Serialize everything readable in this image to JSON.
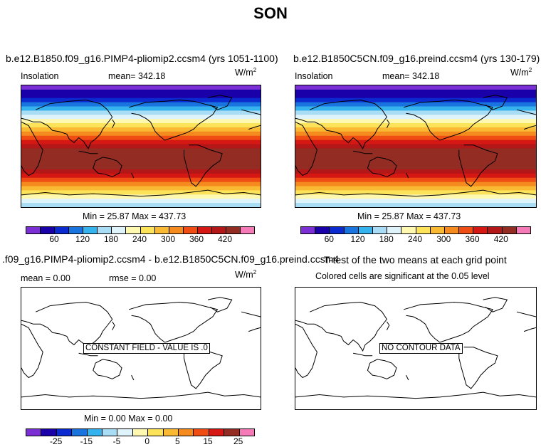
{
  "figure_title": "SON",
  "colors": {
    "insolation_palette": [
      "#7b2fd4",
      "#1a00a8",
      "#0b2ad0",
      "#1a74e0",
      "#35b3ee",
      "#a9dcf5",
      "#dff3fb",
      "#fff8b0",
      "#fde35a",
      "#f9b933",
      "#f58a1f",
      "#ef4d14",
      "#d51814",
      "#b31717",
      "#932c23",
      "#f57ab8"
    ],
    "diff_palette": [
      "#7b2fd4",
      "#1a00a8",
      "#0b2ad0",
      "#1a74e0",
      "#35b3ee",
      "#a9dcf5",
      "#dff3fb",
      "#fff8b0",
      "#fde35a",
      "#f9b933",
      "#f58a1f",
      "#ef4d14",
      "#d51814",
      "#932c23",
      "#f57ab8"
    ]
  },
  "panels": {
    "top_left": {
      "title": "b.e12.B1850.f09_g16.PIMP4-pliomip2.ccsm4 (yrs 1051-1100)",
      "variable": "Insolation",
      "mean": "mean= 342.18",
      "units_base": "W/m",
      "units_exp": "2",
      "minmax": "Min =  25.87 Max = 437.73",
      "ticks": [
        "60",
        "120",
        "180",
        "240",
        "300",
        "360",
        "420"
      ]
    },
    "top_right": {
      "title": "b.e12.B1850C5CN.f09_g16.preind.ccsm4 (yrs 130-179)",
      "variable": "Insolation",
      "mean": "mean= 342.18",
      "units_base": "W/m",
      "units_exp": "2",
      "minmax": "Min =  25.87 Max = 437.73",
      "ticks": [
        "60",
        "120",
        "180",
        "240",
        "300",
        "360",
        "420"
      ]
    },
    "bottom_left": {
      "title": ".f09_g16.PIMP4-pliomip2.ccsm4 - b.e12.B1850C5CN.f09_g16.preind.ccsm4",
      "mean": "mean =    0.00",
      "rmse": "rmse =    0.00",
      "units_base": "W/m",
      "units_exp": "2",
      "message": "CONSTANT FIELD - VALUE IS .0",
      "minmax": "Min =   0.00 Max =   0.00",
      "ticks": [
        "-25",
        "-15",
        "-5",
        "0",
        "5",
        "15",
        "25"
      ]
    },
    "bottom_right": {
      "title": "T-test of the two means at each grid point",
      "subtitle": "Colored cells are significant at the 0.05 level",
      "message": "NO CONTOUR DATA"
    }
  },
  "map_data": {
    "projection": "cylindrical equidistant, centered on Pacific",
    "bands": "zonal insolation bands, highest in southern tropics/mid-latitudes"
  }
}
